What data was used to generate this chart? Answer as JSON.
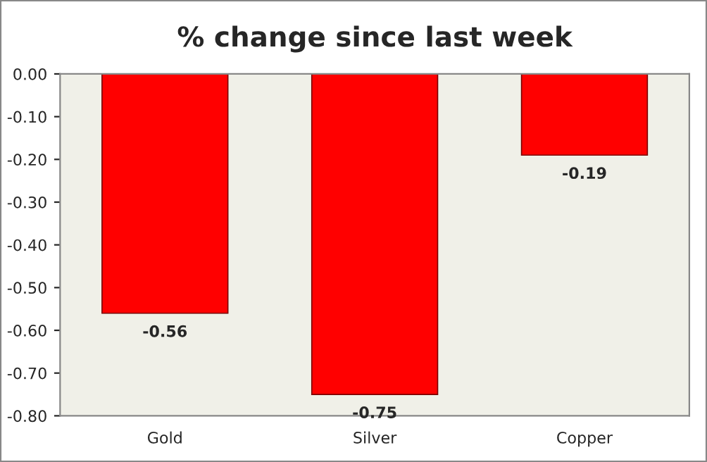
{
  "chart_data": {
    "type": "bar",
    "title": "% change since last week",
    "categories": [
      "Gold",
      "Silver",
      "Copper"
    ],
    "values": [
      -0.56,
      -0.75,
      -0.19
    ],
    "color": "#ff0000",
    "ylim": [
      -0.8,
      0
    ],
    "yticks": [
      {
        "value": 0,
        "label": "0.00"
      },
      {
        "value": -0.1,
        "label": "-0.10"
      },
      {
        "value": -0.2,
        "label": "-0.20"
      },
      {
        "value": -0.3,
        "label": "-0.30"
      },
      {
        "value": -0.4,
        "label": "-0.40"
      },
      {
        "value": -0.5,
        "label": "-0.50"
      },
      {
        "value": -0.6,
        "label": "-0.60"
      },
      {
        "value": -0.7,
        "label": "-0.70"
      },
      {
        "value": -0.8,
        "label": "-0.80"
      }
    ],
    "data_labels": true,
    "grid": false,
    "legend": false
  }
}
